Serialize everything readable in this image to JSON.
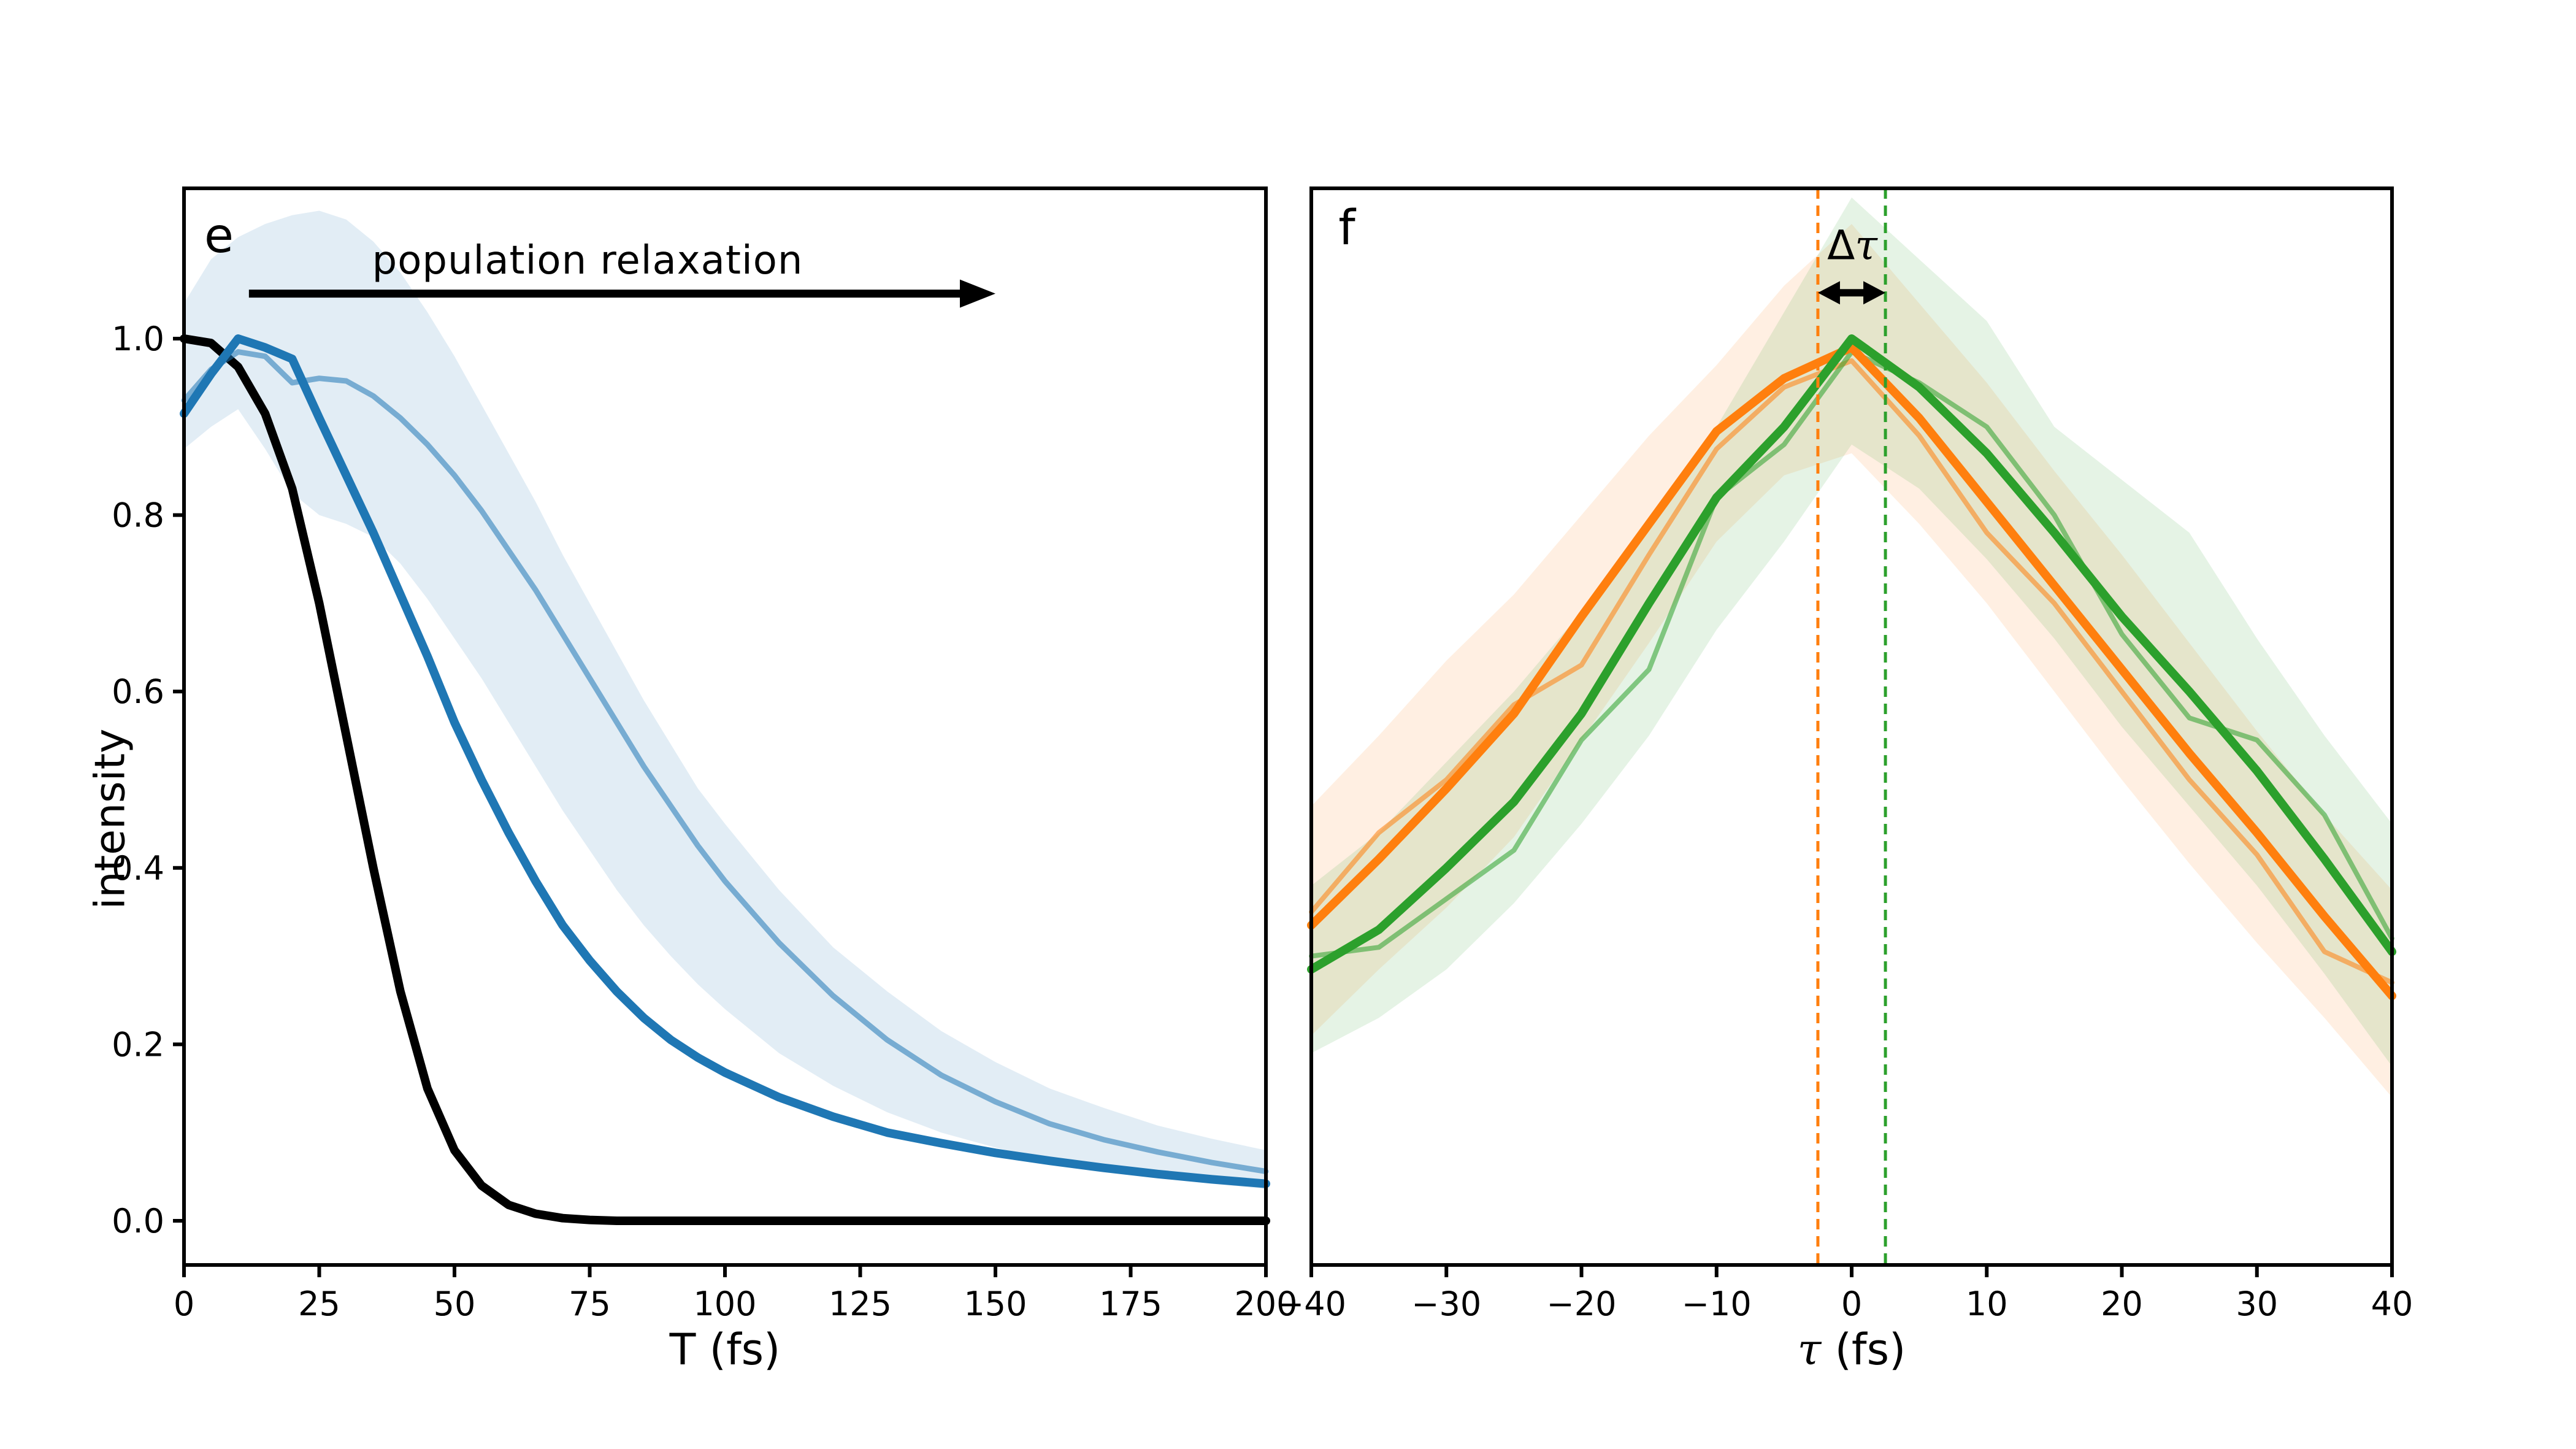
{
  "figure_background": "#ffffff",
  "colors": {
    "axis": "#000000",
    "blue": "#1f77b4",
    "orange": "#ff7f0e",
    "green": "#2ca02c",
    "black": "#000000"
  },
  "chart_data": {
    "type": "line",
    "grid": false,
    "legend": null,
    "panels": [
      {
        "id": "e",
        "label": "e",
        "xlabel": "T (fs)",
        "ylabel": "intensity",
        "xlim": [
          0,
          200
        ],
        "ylim": [
          -0.05,
          1.17
        ],
        "xtick_values": [
          0,
          25,
          50,
          75,
          100,
          125,
          150,
          175,
          200
        ],
        "xtick_labels": [
          "0",
          "25",
          "50",
          "75",
          "100",
          "125",
          "150",
          "175",
          "200"
        ],
        "ytick_values": [
          0.0,
          0.2,
          0.4,
          0.6,
          0.8,
          1.0
        ],
        "ytick_labels": [
          "0.0",
          "0.2",
          "0.4",
          "0.6",
          "0.8",
          "1.0"
        ],
        "x": [
          0,
          5,
          10,
          15,
          20,
          25,
          30,
          35,
          40,
          45,
          50,
          55,
          60,
          65,
          70,
          75,
          80,
          85,
          90,
          95,
          100,
          110,
          120,
          130,
          140,
          150,
          160,
          170,
          180,
          190,
          200
        ],
        "series": [
          {
            "name": "std-band",
            "type": "band",
            "color": "#1f77b4",
            "fill_opacity": 0.13,
            "upper": [
              1.04,
              1.09,
              1.115,
              1.13,
              1.14,
              1.145,
              1.135,
              1.11,
              1.075,
              1.03,
              0.98,
              0.925,
              0.87,
              0.815,
              0.755,
              0.7,
              0.645,
              0.59,
              0.54,
              0.49,
              0.45,
              0.375,
              0.31,
              0.26,
              0.215,
              0.18,
              0.15,
              0.128,
              0.108,
              0.093,
              0.08
            ],
            "lower": [
              0.875,
              0.9,
              0.92,
              0.875,
              0.825,
              0.8,
              0.79,
              0.775,
              0.745,
              0.705,
              0.66,
              0.615,
              0.565,
              0.515,
              0.465,
              0.42,
              0.375,
              0.335,
              0.3,
              0.268,
              0.24,
              0.19,
              0.153,
              0.123,
              0.1,
              0.083,
              0.069,
              0.058,
              0.049,
              0.042,
              0.036
            ]
          },
          {
            "name": "black-reference",
            "type": "line",
            "color": "#000000",
            "width": 14,
            "opacity": 1,
            "values": [
              1.0,
              0.995,
              0.968,
              0.915,
              0.83,
              0.7,
              0.55,
              0.4,
              0.26,
              0.15,
              0.08,
              0.04,
              0.018,
              0.008,
              0.003,
              0.001,
              0,
              0,
              0,
              0,
              0,
              0,
              0,
              0,
              0,
              0,
              0,
              0,
              0,
              0,
              0
            ]
          },
          {
            "name": "single-trial",
            "type": "line",
            "color": "#1f77b4",
            "width": 9,
            "opacity": 0.55,
            "values": [
              0.93,
              0.965,
              0.985,
              0.98,
              0.95,
              0.955,
              0.952,
              0.935,
              0.91,
              0.88,
              0.845,
              0.805,
              0.76,
              0.715,
              0.665,
              0.615,
              0.565,
              0.515,
              0.47,
              0.425,
              0.385,
              0.315,
              0.255,
              0.205,
              0.165,
              0.135,
              0.11,
              0.092,
              0.078,
              0.066,
              0.056
            ]
          },
          {
            "name": "mean",
            "type": "line",
            "color": "#1f77b4",
            "width": 14,
            "opacity": 1,
            "values": [
              0.915,
              0.96,
              1.0,
              0.99,
              0.977,
              0.91,
              0.845,
              0.78,
              0.71,
              0.64,
              0.565,
              0.5,
              0.44,
              0.385,
              0.335,
              0.295,
              0.26,
              0.23,
              0.205,
              0.185,
              0.168,
              0.14,
              0.118,
              0.1,
              0.088,
              0.077,
              0.068,
              0.06,
              0.053,
              0.047,
              0.042
            ]
          }
        ],
        "annotation": {
          "text": "population relaxation",
          "arrow": {
            "x_from": 12,
            "x_to": 150,
            "y": 1.051,
            "heads": "right",
            "color": "#000000"
          }
        }
      },
      {
        "id": "f",
        "label": "f",
        "xlabel_symbol": "τ",
        "xlabel_rest": " (fs)",
        "xlim": [
          -40,
          40
        ],
        "ylim": [
          -0.05,
          1.17
        ],
        "xtick_values": [
          -40,
          -30,
          -20,
          -10,
          0,
          10,
          20,
          30,
          40
        ],
        "xtick_labels": [
          "−40",
          "−30",
          "−20",
          "−10",
          "0",
          "10",
          "20",
          "30",
          "40"
        ],
        "ytick_values": [],
        "ytick_labels": [],
        "x": [
          -40,
          -35,
          -30,
          -25,
          -20,
          -15,
          -10,
          -5,
          0,
          5,
          10,
          15,
          20,
          25,
          30,
          35,
          40
        ],
        "series": [
          {
            "name": "orange-std-band",
            "type": "band",
            "color": "#ff7f0e",
            "fill_opacity": 0.12,
            "upper": [
              0.47,
              0.55,
              0.635,
              0.71,
              0.8,
              0.89,
              0.97,
              1.06,
              1.13,
              1.04,
              0.95,
              0.85,
              0.755,
              0.655,
              0.555,
              0.46,
              0.375
            ],
            "lower": [
              0.21,
              0.285,
              0.355,
              0.435,
              0.545,
              0.655,
              0.77,
              0.845,
              0.87,
              0.79,
              0.7,
              0.6,
              0.5,
              0.405,
              0.315,
              0.23,
              0.14
            ]
          },
          {
            "name": "green-std-band",
            "type": "band",
            "color": "#2ca02c",
            "fill_opacity": 0.12,
            "upper": [
              0.38,
              0.44,
              0.52,
              0.6,
              0.69,
              0.79,
              0.9,
              1.03,
              1.16,
              1.09,
              1.02,
              0.9,
              0.84,
              0.78,
              0.66,
              0.55,
              0.45
            ],
            "lower": [
              0.19,
              0.23,
              0.285,
              0.36,
              0.45,
              0.55,
              0.67,
              0.77,
              0.88,
              0.83,
              0.75,
              0.66,
              0.56,
              0.47,
              0.38,
              0.28,
              0.175
            ]
          },
          {
            "name": "orange-single-trial",
            "type": "line",
            "color": "#ff7f0e",
            "width": 8,
            "opacity": 0.55,
            "values": [
              0.35,
              0.44,
              0.5,
              0.585,
              0.63,
              0.755,
              0.875,
              0.945,
              0.975,
              0.89,
              0.78,
              0.7,
              0.6,
              0.5,
              0.415,
              0.305,
              0.27
            ]
          },
          {
            "name": "green-single-trial",
            "type": "line",
            "color": "#2ca02c",
            "width": 8,
            "opacity": 0.55,
            "values": [
              0.3,
              0.31,
              0.365,
              0.42,
              0.545,
              0.625,
              0.82,
              0.88,
              0.985,
              0.95,
              0.9,
              0.8,
              0.665,
              0.57,
              0.545,
              0.46,
              0.32
            ]
          },
          {
            "name": "orange-mean",
            "type": "line",
            "color": "#ff7f0e",
            "width": 14,
            "opacity": 1,
            "values": [
              0.335,
              0.41,
              0.49,
              0.575,
              0.685,
              0.79,
              0.895,
              0.955,
              0.99,
              0.91,
              0.815,
              0.72,
              0.625,
              0.53,
              0.44,
              0.345,
              0.255
            ]
          },
          {
            "name": "green-mean",
            "type": "line",
            "color": "#2ca02c",
            "width": 14,
            "opacity": 1,
            "values": [
              0.285,
              0.33,
              0.4,
              0.475,
              0.575,
              0.7,
              0.82,
              0.9,
              1.0,
              0.945,
              0.87,
              0.78,
              0.685,
              0.6,
              0.51,
              0.41,
              0.305
            ]
          }
        ],
        "vlines": [
          {
            "x": -2.5,
            "color": "#ff7f0e",
            "style": "dashed"
          },
          {
            "x": 2.5,
            "color": "#2ca02c",
            "style": "dashed"
          }
        ],
        "annotation": {
          "text_delta": "Δ",
          "text_tau": "τ",
          "arrow": {
            "x_from": -2.5,
            "x_to": 2.5,
            "y": 1.052,
            "heads": "both",
            "color": "#000000"
          }
        }
      }
    ]
  },
  "labels": {
    "panel_e_letter": "e",
    "panel_f_letter": "f",
    "population_relaxation": "population relaxation",
    "delta": "Δ",
    "tau": "τ",
    "intensity": "intensity",
    "xlabel_e": "T (fs)",
    "xlabel_f_rest": " (fs)"
  }
}
